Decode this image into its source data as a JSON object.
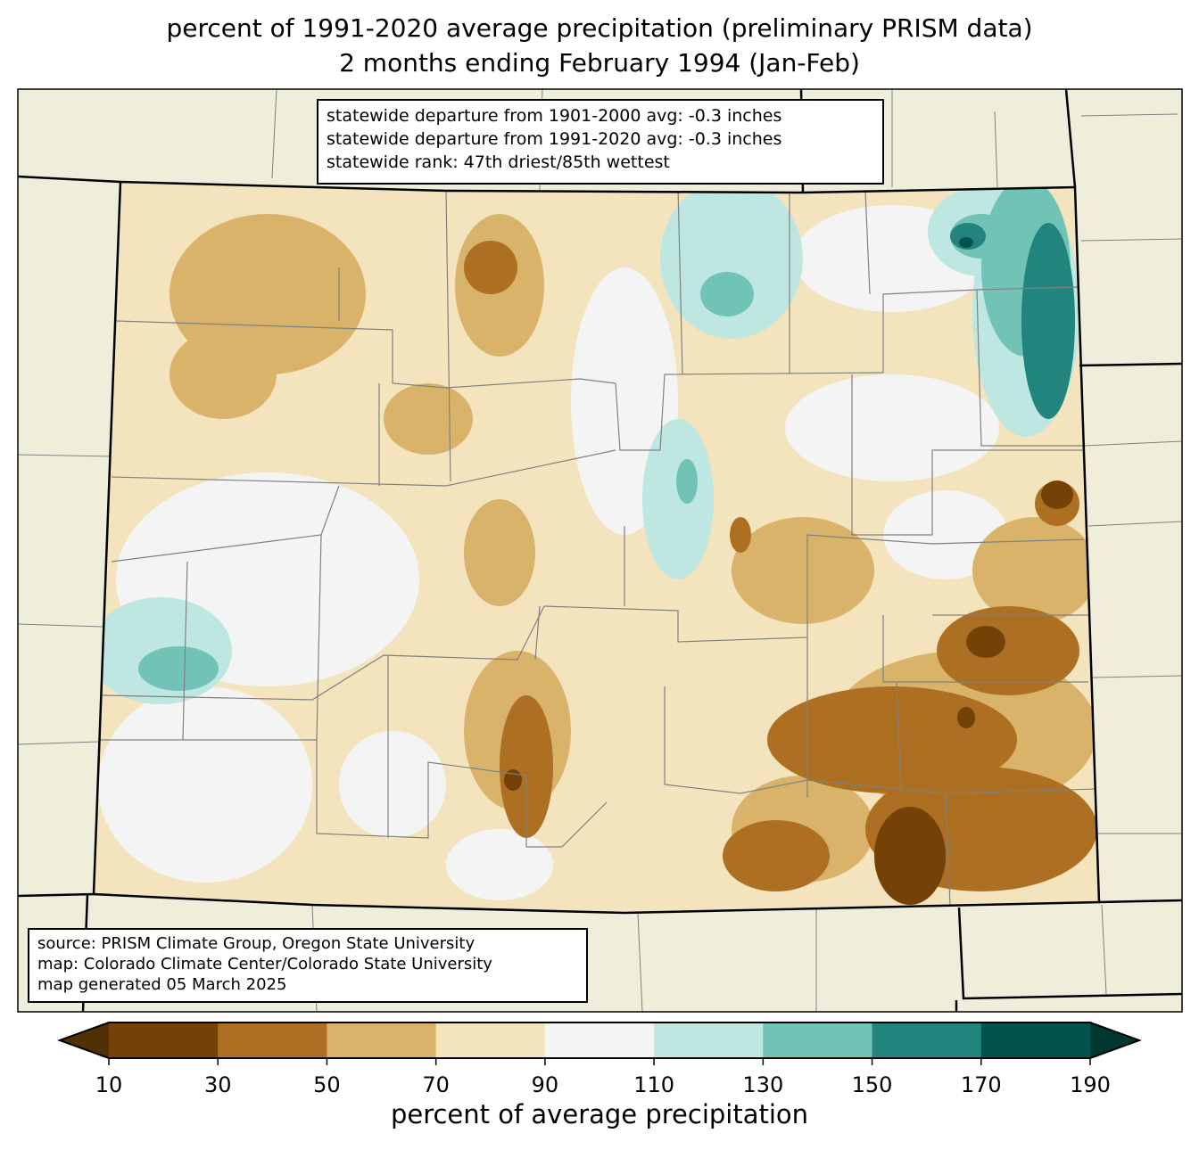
{
  "title": {
    "line1": "percent of 1991-2020 average precipitation (preliminary PRISM data)",
    "line2": "2 months ending February 1994 (Jan-Feb)"
  },
  "stats_box": {
    "line1": "statewide departure from 1901-2000 avg: -0.3 inches",
    "line2": "statewide departure from 1991-2020 avg: -0.3 inches",
    "line3": "statewide rank: 47th driest/85th wettest"
  },
  "source_box": {
    "line1": "source: PRISM Climate Group, Oregon State University",
    "line2": "map: Colorado Climate Center/Colorado State University",
    "line3": "map generated 05 March 2025"
  },
  "colorbar": {
    "label": "percent of average precipitation",
    "ticks": [
      "10",
      "30",
      "50",
      "70",
      "90",
      "110",
      "130",
      "150",
      "170",
      "190"
    ],
    "colors": [
      "#744206",
      "#ad6f22",
      "#dab36b",
      "#f3e4bd",
      "#f3f4f3",
      "#bfe7e2",
      "#71c3b6",
      "#22857d",
      "#02534b"
    ],
    "extend_low": "#523005",
    "extend_high": "#00392f"
  },
  "map": {
    "background": "#efeedb",
    "county_line": "#808080"
  }
}
